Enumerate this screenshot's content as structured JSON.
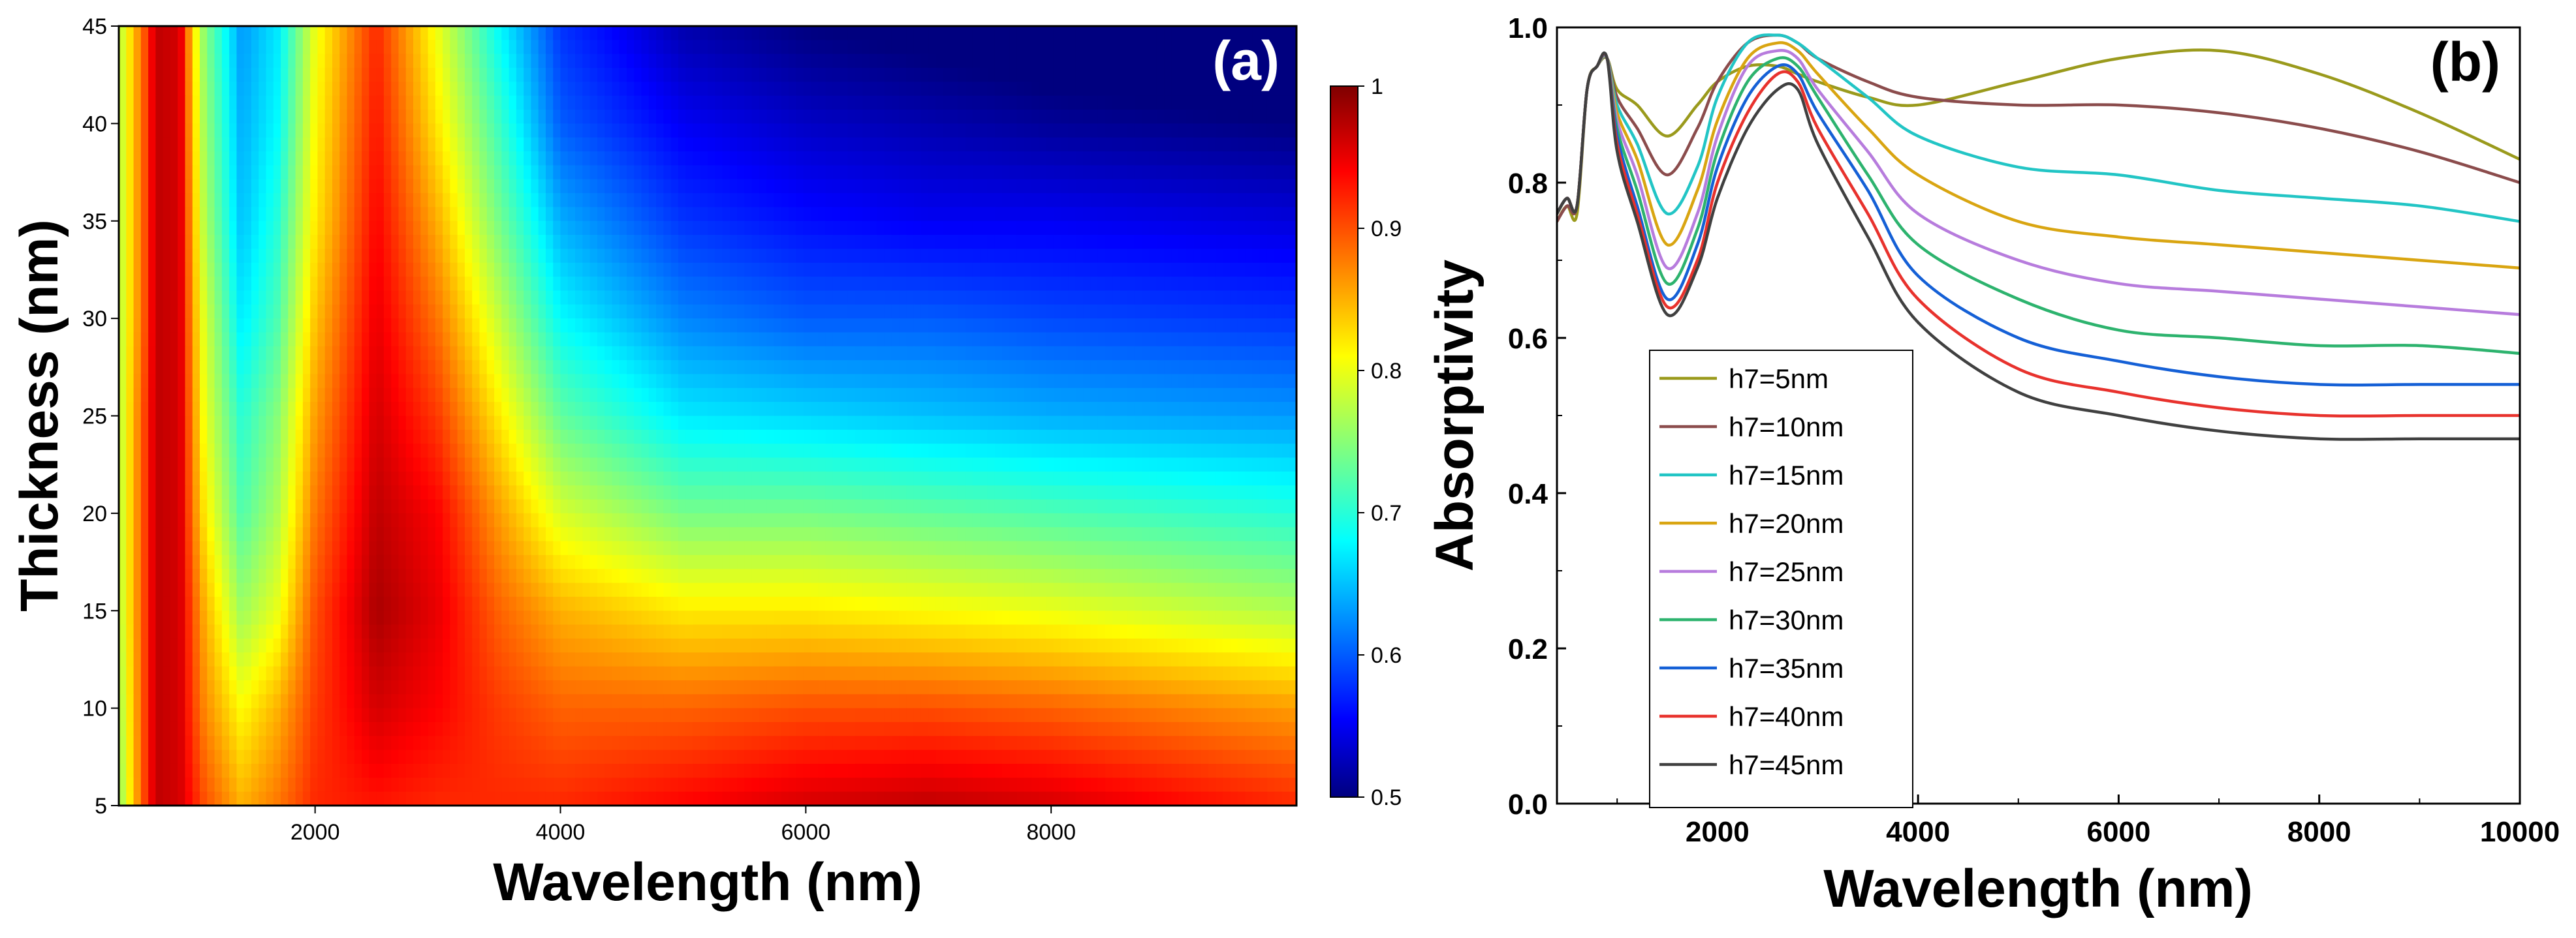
{
  "colors": {
    "colormap": [
      "#00007f",
      "#0000ff",
      "#00ffff",
      "#ffff00",
      "#ff0000",
      "#7f0000"
    ],
    "axis": "#000000",
    "label_a": "#ffffff",
    "label_b": "#000000"
  },
  "chart_data": [
    {
      "type": "heatmap",
      "panel_label": "(a)",
      "xlabel": "Wavelength (nm)",
      "ylabel": "Thickness (nm)",
      "xlim": [
        400,
        10000
      ],
      "ylim": [
        5,
        45
      ],
      "x_ticks": [
        2000,
        4000,
        6000,
        8000
      ],
      "x_tick_labels": [
        "2000",
        "4000",
        "6000",
        "8000"
      ],
      "y_ticks": [
        5,
        10,
        15,
        20,
        25,
        30,
        35,
        40,
        45
      ],
      "y_tick_labels": [
        "5",
        "10",
        "15",
        "20",
        "25",
        "30",
        "35",
        "40",
        "45"
      ],
      "colorbar": {
        "range": [
          0.5,
          1.0
        ],
        "ticks": [
          0.5,
          0.6,
          0.7,
          0.8,
          0.9,
          1.0
        ],
        "tick_labels": [
          "0.5",
          "0.6",
          "0.7",
          "0.8",
          "0.9",
          "1"
        ]
      },
      "z_label": "Absorptivity",
      "thickness_rows": [
        5,
        10,
        15,
        20,
        25,
        30,
        35,
        40,
        45
      ],
      "wavelength_cols": [
        400,
        600,
        700,
        900,
        1000,
        1100,
        1400,
        1700,
        2000,
        2500,
        3000,
        3500,
        4000,
        5000,
        6000,
        7000,
        8000,
        10000
      ],
      "z": [
        [
          0.75,
          0.9,
          0.97,
          0.96,
          0.93,
          0.9,
          0.85,
          0.88,
          0.92,
          0.93,
          0.92,
          0.92,
          0.92,
          0.94,
          0.96,
          0.97,
          0.96,
          0.92
        ],
        [
          0.76,
          0.9,
          0.97,
          0.96,
          0.91,
          0.87,
          0.81,
          0.85,
          0.91,
          0.96,
          0.94,
          0.91,
          0.89,
          0.89,
          0.9,
          0.9,
          0.89,
          0.86
        ],
        [
          0.77,
          0.9,
          0.97,
          0.96,
          0.9,
          0.85,
          0.76,
          0.8,
          0.9,
          0.98,
          0.95,
          0.89,
          0.85,
          0.82,
          0.82,
          0.81,
          0.8,
          0.77
        ],
        [
          0.77,
          0.9,
          0.97,
          0.96,
          0.88,
          0.82,
          0.72,
          0.77,
          0.88,
          0.97,
          0.94,
          0.86,
          0.79,
          0.74,
          0.74,
          0.73,
          0.72,
          0.7
        ],
        [
          0.77,
          0.9,
          0.97,
          0.96,
          0.87,
          0.8,
          0.7,
          0.75,
          0.86,
          0.96,
          0.91,
          0.82,
          0.73,
          0.67,
          0.66,
          0.65,
          0.64,
          0.63
        ],
        [
          0.77,
          0.89,
          0.97,
          0.96,
          0.86,
          0.79,
          0.67,
          0.72,
          0.84,
          0.95,
          0.88,
          0.78,
          0.68,
          0.62,
          0.6,
          0.6,
          0.59,
          0.58
        ],
        [
          0.77,
          0.89,
          0.97,
          0.96,
          0.85,
          0.77,
          0.65,
          0.7,
          0.82,
          0.94,
          0.85,
          0.74,
          0.64,
          0.58,
          0.56,
          0.55,
          0.55,
          0.54
        ],
        [
          0.77,
          0.89,
          0.97,
          0.96,
          0.84,
          0.76,
          0.64,
          0.68,
          0.81,
          0.93,
          0.82,
          0.71,
          0.6,
          0.55,
          0.53,
          0.52,
          0.51,
          0.5
        ],
        [
          0.77,
          0.89,
          0.97,
          0.96,
          0.83,
          0.75,
          0.63,
          0.67,
          0.8,
          0.92,
          0.8,
          0.68,
          0.58,
          0.52,
          0.5,
          0.49,
          0.48,
          0.47
        ]
      ]
    },
    {
      "type": "line",
      "panel_label": "(b)",
      "xlabel": "Wavelength (nm)",
      "ylabel": "Absorptivity",
      "xlim": [
        400,
        10000
      ],
      "ylim": [
        0.0,
        1.0
      ],
      "x_ticks": [
        2000,
        4000,
        6000,
        8000,
        10000
      ],
      "x_tick_labels": [
        "2000",
        "4000",
        "6000",
        "8000",
        "10000"
      ],
      "y_ticks": [
        0.0,
        0.2,
        0.4,
        0.6,
        0.8,
        1.0
      ],
      "y_tick_labels": [
        "0.0",
        "0.2",
        "0.4",
        "0.6",
        "0.8",
        "1.0"
      ],
      "legend_position": "lower-left",
      "x": [
        400,
        500,
        600,
        700,
        800,
        900,
        1000,
        1200,
        1500,
        1800,
        2000,
        2300,
        2600,
        2800,
        3000,
        3500,
        4000,
        5000,
        6000,
        7000,
        8000,
        9000,
        10000
      ],
      "series": [
        {
          "name": "h7=5nm",
          "color": "#9a9a1c",
          "values": [
            0.75,
            0.77,
            0.76,
            0.92,
            0.95,
            0.96,
            0.92,
            0.9,
            0.86,
            0.9,
            0.93,
            0.95,
            0.95,
            0.94,
            0.93,
            0.91,
            0.9,
            0.93,
            0.96,
            0.97,
            0.94,
            0.89,
            0.83
          ]
        },
        {
          "name": "h7=10nm",
          "color": "#8b4c4c",
          "values": [
            0.75,
            0.77,
            0.77,
            0.92,
            0.95,
            0.96,
            0.91,
            0.87,
            0.81,
            0.87,
            0.93,
            0.98,
            0.99,
            0.98,
            0.96,
            0.93,
            0.91,
            0.9,
            0.9,
            0.89,
            0.87,
            0.84,
            0.8
          ]
        },
        {
          "name": "h7=15nm",
          "color": "#22c5c5",
          "values": [
            0.76,
            0.78,
            0.77,
            0.92,
            0.95,
            0.96,
            0.9,
            0.85,
            0.76,
            0.82,
            0.91,
            0.98,
            0.99,
            0.98,
            0.96,
            0.91,
            0.86,
            0.82,
            0.81,
            0.79,
            0.78,
            0.77,
            0.75
          ]
        },
        {
          "name": "h7=20nm",
          "color": "#d9a511",
          "values": [
            0.76,
            0.78,
            0.77,
            0.92,
            0.95,
            0.96,
            0.89,
            0.83,
            0.72,
            0.79,
            0.88,
            0.96,
            0.98,
            0.97,
            0.94,
            0.87,
            0.81,
            0.75,
            0.73,
            0.72,
            0.71,
            0.7,
            0.69
          ]
        },
        {
          "name": "h7=25nm",
          "color": "#b77cdd",
          "values": [
            0.76,
            0.78,
            0.77,
            0.92,
            0.95,
            0.96,
            0.88,
            0.81,
            0.69,
            0.76,
            0.86,
            0.95,
            0.97,
            0.96,
            0.92,
            0.84,
            0.76,
            0.7,
            0.67,
            0.66,
            0.65,
            0.64,
            0.63
          ]
        },
        {
          "name": "h7=30nm",
          "color": "#2db36e",
          "values": [
            0.76,
            0.78,
            0.77,
            0.92,
            0.95,
            0.96,
            0.87,
            0.79,
            0.67,
            0.74,
            0.84,
            0.93,
            0.96,
            0.95,
            0.91,
            0.81,
            0.72,
            0.65,
            0.61,
            0.6,
            0.59,
            0.59,
            0.58
          ]
        },
        {
          "name": "h7=35nm",
          "color": "#1560d6",
          "values": [
            0.76,
            0.78,
            0.77,
            0.92,
            0.95,
            0.96,
            0.86,
            0.77,
            0.65,
            0.72,
            0.82,
            0.91,
            0.95,
            0.94,
            0.89,
            0.79,
            0.68,
            0.6,
            0.57,
            0.55,
            0.54,
            0.54,
            0.54
          ]
        },
        {
          "name": "h7=40nm",
          "color": "#e8322d",
          "values": [
            0.76,
            0.78,
            0.77,
            0.92,
            0.95,
            0.96,
            0.85,
            0.76,
            0.64,
            0.7,
            0.8,
            0.89,
            0.94,
            0.93,
            0.87,
            0.76,
            0.65,
            0.56,
            0.53,
            0.51,
            0.5,
            0.5,
            0.5
          ]
        },
        {
          "name": "h7=45nm",
          "color": "#404040",
          "values": [
            0.76,
            0.78,
            0.77,
            0.92,
            0.95,
            0.96,
            0.84,
            0.75,
            0.63,
            0.69,
            0.78,
            0.87,
            0.92,
            0.92,
            0.85,
            0.73,
            0.62,
            0.53,
            0.5,
            0.48,
            0.47,
            0.47,
            0.47
          ]
        }
      ]
    }
  ]
}
